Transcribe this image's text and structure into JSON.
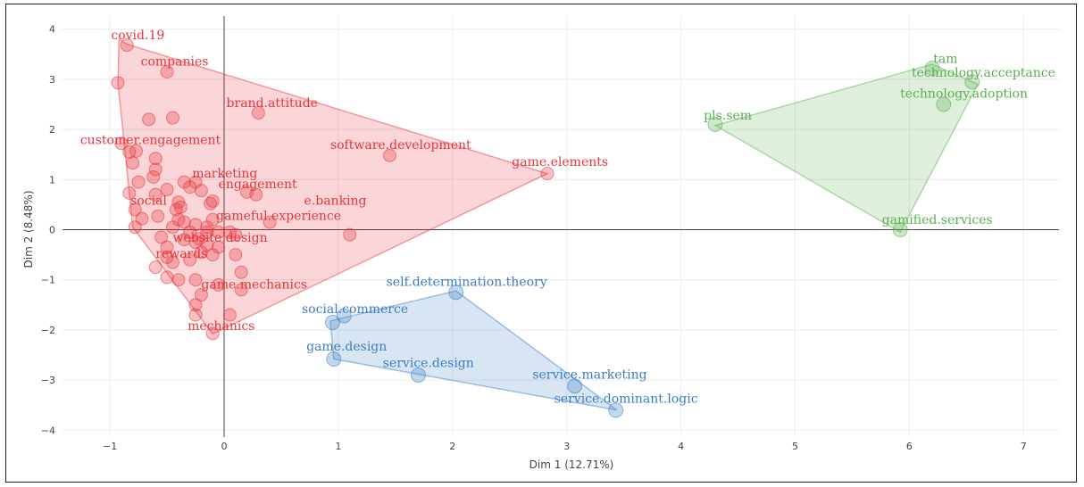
{
  "chart_data": {
    "type": "scatter",
    "title": "",
    "xlabel": "Dim 1 (12.71%)",
    "ylabel": "Dim 2 (8.48%)",
    "xlim": [
      -1.35,
      7.35
    ],
    "ylim": [
      -4.4,
      4.35
    ],
    "xticks": [
      -1,
      0,
      1,
      2,
      3,
      4,
      5,
      6,
      7
    ],
    "yticks": [
      -4,
      -3,
      -2,
      -1,
      0,
      1,
      2,
      3,
      4
    ],
    "grid": true,
    "legend": "none",
    "series": [
      {
        "color": "#e8343a",
        "hull": [
          [
            -0.92,
            3.8
          ],
          [
            -0.85,
            3.7
          ],
          [
            2.83,
            1.12
          ],
          [
            -0.1,
            -2.08
          ],
          [
            -0.8,
            0.05
          ],
          [
            -0.93,
            2.93
          ]
        ],
        "points": [
          [
            -0.85,
            3.68
          ],
          [
            -0.93,
            2.93
          ],
          [
            -0.5,
            3.15
          ],
          [
            0.3,
            2.33
          ],
          [
            -0.66,
            2.2
          ],
          [
            -0.45,
            2.23
          ],
          [
            -0.9,
            1.72
          ],
          [
            -0.83,
            1.55
          ],
          [
            -0.77,
            1.57
          ],
          [
            -0.8,
            1.33
          ],
          [
            -0.6,
            1.42
          ],
          [
            -0.6,
            1.2
          ],
          [
            -0.62,
            1.05
          ],
          [
            -0.75,
            0.95
          ],
          [
            -0.5,
            0.8
          ],
          [
            -0.83,
            0.73
          ],
          [
            -0.6,
            0.7
          ],
          [
            -0.3,
            0.85
          ],
          [
            -0.25,
            0.95
          ],
          [
            -0.2,
            0.78
          ],
          [
            -0.1,
            0.57
          ],
          [
            -0.12,
            0.52
          ],
          [
            -0.4,
            0.55
          ],
          [
            -0.38,
            0.45
          ],
          [
            -0.42,
            0.4
          ],
          [
            -0.78,
            0.4
          ],
          [
            -0.72,
            0.22
          ],
          [
            -0.58,
            0.27
          ],
          [
            -0.4,
            0.2
          ],
          [
            -0.35,
            0.15
          ],
          [
            -0.1,
            0.2
          ],
          [
            -0.25,
            0.1
          ],
          [
            -0.78,
            0.05
          ],
          [
            -0.45,
            0.05
          ],
          [
            -0.3,
            -0.05
          ],
          [
            -0.15,
            -0.05
          ],
          [
            -0.05,
            -0.05
          ],
          [
            0.05,
            -0.05
          ],
          [
            -0.55,
            -0.15
          ],
          [
            -0.35,
            -0.2
          ],
          [
            -0.25,
            -0.25
          ],
          [
            -0.15,
            -0.3
          ],
          [
            -0.05,
            -0.35
          ],
          [
            -0.2,
            -0.45
          ],
          [
            -0.1,
            -0.5
          ],
          [
            -0.5,
            -0.35
          ],
          [
            -0.3,
            -0.6
          ],
          [
            -0.45,
            -0.65
          ],
          [
            -0.6,
            -0.75
          ],
          [
            -0.5,
            -0.95
          ],
          [
            -0.4,
            -1.0
          ],
          [
            -0.25,
            -1.0
          ],
          [
            -0.05,
            -1.1
          ],
          [
            0.15,
            -1.2
          ],
          [
            -0.2,
            -1.3
          ],
          [
            -0.25,
            -1.5
          ],
          [
            -0.25,
            -1.7
          ],
          [
            0.05,
            -1.7
          ],
          [
            -0.1,
            -2.07
          ],
          [
            0.2,
            0.75
          ],
          [
            0.28,
            0.7
          ],
          [
            0.1,
            -0.1
          ],
          [
            0.1,
            -0.5
          ],
          [
            0.15,
            -0.85
          ],
          [
            0.4,
            0.15
          ],
          [
            1.45,
            1.48
          ],
          [
            1.1,
            -0.1
          ],
          [
            2.83,
            1.12
          ],
          [
            -0.35,
            0.95
          ],
          [
            -0.5,
            -0.55
          ],
          [
            -0.15,
            0.05
          ],
          [
            -0.22,
            -0.18
          ]
        ],
        "labels": [
          {
            "text": "covid.19",
            "x": -0.99,
            "y": 3.8
          },
          {
            "text": "companies",
            "x": -0.73,
            "y": 3.27
          },
          {
            "text": "brand.attitude",
            "x": 0.02,
            "y": 2.45
          },
          {
            "text": "customer.engagement",
            "x": -1.26,
            "y": 1.71
          },
          {
            "text": "software.development",
            "x": 0.93,
            "y": 1.61
          },
          {
            "text": "game.elements",
            "x": 2.52,
            "y": 1.27
          },
          {
            "text": "marketing",
            "x": -0.28,
            "y": 1.04
          },
          {
            "text": "engagement",
            "x": -0.05,
            "y": 0.83
          },
          {
            "text": "social",
            "x": -0.82,
            "y": 0.5
          },
          {
            "text": "e.banking",
            "x": 0.7,
            "y": 0.5
          },
          {
            "text": "gameful.experience",
            "x": -0.07,
            "y": 0.2
          },
          {
            "text": "website.design",
            "x": -0.45,
            "y": -0.24
          },
          {
            "text": "rewards",
            "x": -0.6,
            "y": -0.56
          },
          {
            "text": "game.mechanics",
            "x": -0.2,
            "y": -1.17
          },
          {
            "text": "mechanics",
            "x": -0.32,
            "y": -2.0
          }
        ]
      },
      {
        "color": "#3a7dc4",
        "hull": [
          [
            0.93,
            -1.82
          ],
          [
            2.03,
            -1.22
          ],
          [
            3.44,
            -3.6
          ],
          [
            0.96,
            -2.58
          ]
        ],
        "points": [
          [
            0.95,
            -1.85
          ],
          [
            1.05,
            -1.72
          ],
          [
            2.03,
            -1.25
          ],
          [
            0.96,
            -2.58
          ],
          [
            1.7,
            -2.9
          ],
          [
            3.07,
            -3.12
          ],
          [
            3.43,
            -3.6
          ]
        ],
        "labels": [
          {
            "text": "self.determination.theory",
            "x": 1.42,
            "y": -1.12
          },
          {
            "text": "social.commerce",
            "x": 0.68,
            "y": -1.66
          },
          {
            "text": "game.design",
            "x": 0.72,
            "y": -2.41
          },
          {
            "text": "service.design",
            "x": 1.39,
            "y": -2.74
          },
          {
            "text": "service.marketing",
            "x": 2.7,
            "y": -2.97
          },
          {
            "text": "service.dominant.logic",
            "x": 2.89,
            "y": -3.45
          }
        ]
      },
      {
        "color": "#5aaf50",
        "hull": [
          [
            4.3,
            2.08
          ],
          [
            6.2,
            3.3
          ],
          [
            6.6,
            2.9
          ],
          [
            5.92,
            -0.05
          ]
        ],
        "points": [
          [
            4.3,
            2.1
          ],
          [
            6.2,
            3.22
          ],
          [
            6.55,
            2.95
          ],
          [
            6.3,
            2.5
          ],
          [
            5.92,
            0.0
          ]
        ],
        "labels": [
          {
            "text": "tam",
            "x": 6.21,
            "y": 3.33
          },
          {
            "text": "technology.acceptance",
            "x": 6.02,
            "y": 3.05
          },
          {
            "text": "technology.adoption",
            "x": 5.92,
            "y": 2.63
          },
          {
            "text": "pls.sem",
            "x": 4.2,
            "y": 2.2
          },
          {
            "text": "gamified.services",
            "x": 5.76,
            "y": 0.12
          }
        ]
      }
    ]
  }
}
